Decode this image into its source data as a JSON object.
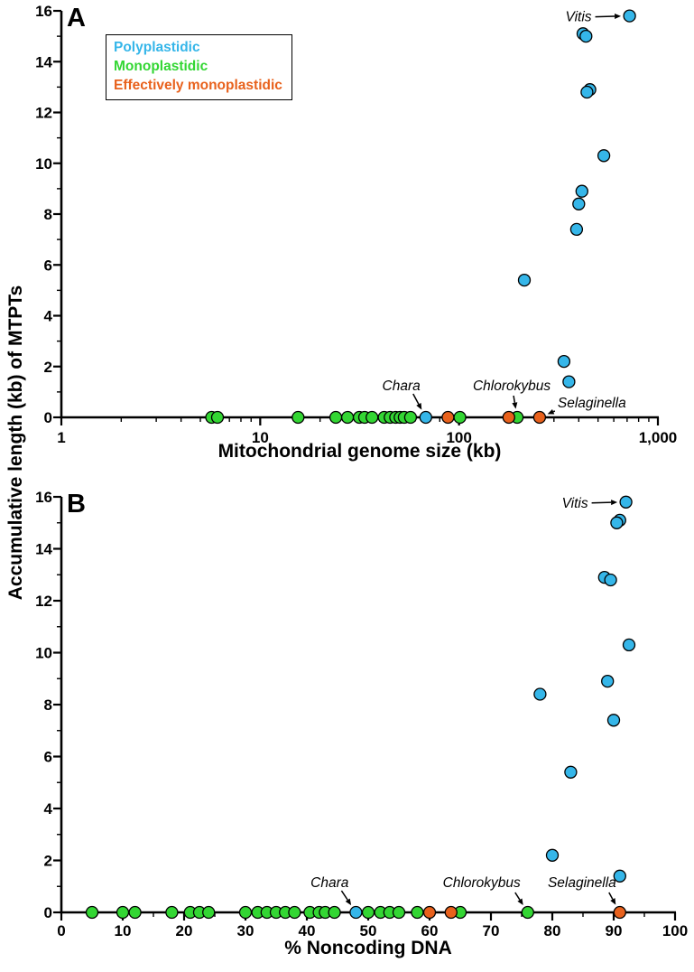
{
  "y_axis_label": "Accumulative length (kb) of MTPTs",
  "colors": {
    "polyplastidic": "#35b6e9",
    "monoplastidic": "#33d633",
    "effectively_monoplastidic": "#e8611c",
    "axis": "#000000"
  },
  "legend": {
    "items": [
      {
        "label": "Polyplastidic",
        "color_key": "polyplastidic"
      },
      {
        "label": "Monoplastidic",
        "color_key": "monoplastidic"
      },
      {
        "label": "Effectively monoplastidic",
        "color_key": "effectively_monoplastidic"
      }
    ]
  },
  "chart_data": [
    {
      "id": "A",
      "type": "scatter",
      "panel_label": "A",
      "xlabel": "Mitochondrial genome size (kb)",
      "ylabel": "Accumulative length (kb) of MTPTs",
      "x_scale": "log",
      "x_domain": [
        1,
        1000
      ],
      "x_major_ticks": [
        1,
        10,
        100,
        1000
      ],
      "x_tick_labels": [
        "1",
        "10",
        "100",
        "1,000"
      ],
      "x_minor_ticks": [
        2,
        3,
        4,
        5,
        6,
        7,
        8,
        9,
        20,
        30,
        40,
        50,
        60,
        70,
        80,
        90,
        200,
        300,
        400,
        500,
        600,
        700,
        800,
        900
      ],
      "y_domain": [
        0,
        16
      ],
      "y_major_ticks": [
        0,
        2,
        4,
        6,
        8,
        10,
        12,
        14,
        16
      ],
      "y_tick_labels": [
        "0",
        "2",
        "4",
        "6",
        "8",
        "10",
        "12",
        "14",
        "16"
      ],
      "y_minor_ticks": [
        1,
        3,
        5,
        7,
        9,
        11,
        13,
        15
      ],
      "grid": false,
      "series": [
        {
          "name": "Polyplastidic",
          "color_key": "polyplastidic",
          "points": [
            [
              720,
              15.8
            ],
            [
              420,
              15.1
            ],
            [
              435,
              15.0
            ],
            [
              455,
              12.9
            ],
            [
              440,
              12.8
            ],
            [
              535,
              10.3
            ],
            [
              415,
              8.9
            ],
            [
              400,
              8.4
            ],
            [
              390,
              7.4
            ],
            [
              213,
              5.4
            ],
            [
              337,
              2.2
            ],
            [
              357,
              1.4
            ],
            [
              68,
              0
            ]
          ]
        },
        {
          "name": "Monoplastidic",
          "color_key": "monoplastidic",
          "points": [
            [
              5.7,
              0
            ],
            [
              6.1,
              0
            ],
            [
              15.5,
              0
            ],
            [
              24,
              0
            ],
            [
              27.5,
              0
            ],
            [
              31.5,
              0
            ],
            [
              33.5,
              0
            ],
            [
              36.5,
              0
            ],
            [
              42,
              0
            ],
            [
              45,
              0
            ],
            [
              48,
              0
            ],
            [
              50.5,
              0
            ],
            [
              53,
              0
            ],
            [
              57,
              0
            ],
            [
              101,
              0
            ],
            [
              196,
              0
            ]
          ]
        },
        {
          "name": "Effectively monoplastidic",
          "color_key": "effectively_monoplastidic",
          "points": [
            [
              88,
              0
            ],
            [
              178,
              0
            ],
            [
              254,
              0
            ]
          ]
        }
      ],
      "annotations": [
        {
          "label": "Vitis",
          "x": 720,
          "y": 15.8,
          "anchor": "end",
          "text_offset": [
            -42,
            6
          ],
          "arrow_start": [
            -38,
            1
          ]
        },
        {
          "label": "Chara",
          "x": 68,
          "y": 0,
          "anchor": "end",
          "text_offset": [
            -6,
            -30
          ],
          "arrow_start": [
            -14,
            -26
          ]
        },
        {
          "label": "Chlorokybus",
          "x": 196,
          "y": 0,
          "anchor": "middle",
          "text_offset": [
            -6,
            -30
          ],
          "arrow_start": [
            -4,
            -24
          ]
        },
        {
          "label": "Selaginella",
          "x": 254,
          "y": 0,
          "anchor": "start",
          "text_offset": [
            20,
            -11
          ],
          "arrow_start": [
            17,
            -7
          ]
        }
      ]
    },
    {
      "id": "B",
      "type": "scatter",
      "panel_label": "B",
      "xlabel": "% Noncoding DNA",
      "ylabel": "Accumulative length (kb) of MTPTs",
      "x_scale": "linear",
      "x_domain": [
        0,
        100
      ],
      "x_major_ticks": [
        0,
        10,
        20,
        30,
        40,
        50,
        60,
        70,
        80,
        90,
        100
      ],
      "x_tick_labels": [
        "0",
        "10",
        "20",
        "30",
        "40",
        "50",
        "60",
        "70",
        "80",
        "90",
        "100"
      ],
      "x_minor_ticks": [
        5,
        15,
        25,
        35,
        45,
        55,
        65,
        75,
        85,
        95
      ],
      "y_domain": [
        0,
        16
      ],
      "y_major_ticks": [
        0,
        2,
        4,
        6,
        8,
        10,
        12,
        14,
        16
      ],
      "y_tick_labels": [
        "0",
        "2",
        "4",
        "6",
        "8",
        "10",
        "12",
        "14",
        "16"
      ],
      "y_minor_ticks": [
        1,
        3,
        5,
        7,
        9,
        11,
        13,
        15
      ],
      "grid": false,
      "series": [
        {
          "name": "Polyplastidic",
          "color_key": "polyplastidic",
          "points": [
            [
              92,
              15.8
            ],
            [
              91,
              15.1
            ],
            [
              90.5,
              15.0
            ],
            [
              88.5,
              12.9
            ],
            [
              89.5,
              12.8
            ],
            [
              92.5,
              10.3
            ],
            [
              89,
              8.9
            ],
            [
              78,
              8.4
            ],
            [
              90,
              7.4
            ],
            [
              83,
              5.4
            ],
            [
              80,
              2.2
            ],
            [
              91,
              1.4
            ],
            [
              48,
              0
            ]
          ]
        },
        {
          "name": "Monoplastidic",
          "color_key": "monoplastidic",
          "points": [
            [
              5,
              0
            ],
            [
              10,
              0
            ],
            [
              12,
              0
            ],
            [
              18,
              0
            ],
            [
              21,
              0
            ],
            [
              22.5,
              0
            ],
            [
              24,
              0
            ],
            [
              30,
              0
            ],
            [
              32,
              0
            ],
            [
              33.5,
              0
            ],
            [
              35,
              0
            ],
            [
              36.5,
              0
            ],
            [
              38,
              0
            ],
            [
              40.5,
              0
            ],
            [
              42,
              0
            ],
            [
              43,
              0
            ],
            [
              44.5,
              0
            ],
            [
              50,
              0
            ],
            [
              52,
              0
            ],
            [
              53.5,
              0
            ],
            [
              55,
              0
            ],
            [
              58,
              0
            ],
            [
              65,
              0
            ],
            [
              76,
              0
            ]
          ]
        },
        {
          "name": "Effectively monoplastidic",
          "color_key": "effectively_monoplastidic",
          "points": [
            [
              60,
              0
            ],
            [
              63.5,
              0
            ],
            [
              91,
              0
            ]
          ]
        }
      ],
      "annotations": [
        {
          "label": "Vitis",
          "x": 92,
          "y": 15.8,
          "anchor": "end",
          "text_offset": [
            -42,
            6
          ],
          "arrow_start": [
            -38,
            1
          ]
        },
        {
          "label": "Chara",
          "x": 48,
          "y": 0,
          "anchor": "end",
          "text_offset": [
            -8,
            -28
          ],
          "arrow_start": [
            -16,
            -24
          ]
        },
        {
          "label": "Chlorokybus",
          "x": 76,
          "y": 0,
          "anchor": "end",
          "text_offset": [
            -8,
            -28
          ],
          "arrow_start": [
            -14,
            -22
          ]
        },
        {
          "label": "Selaginella",
          "x": 91,
          "y": 0,
          "anchor": "end",
          "text_offset": [
            -4,
            -28
          ],
          "arrow_start": [
            -12,
            -22
          ]
        }
      ]
    }
  ]
}
